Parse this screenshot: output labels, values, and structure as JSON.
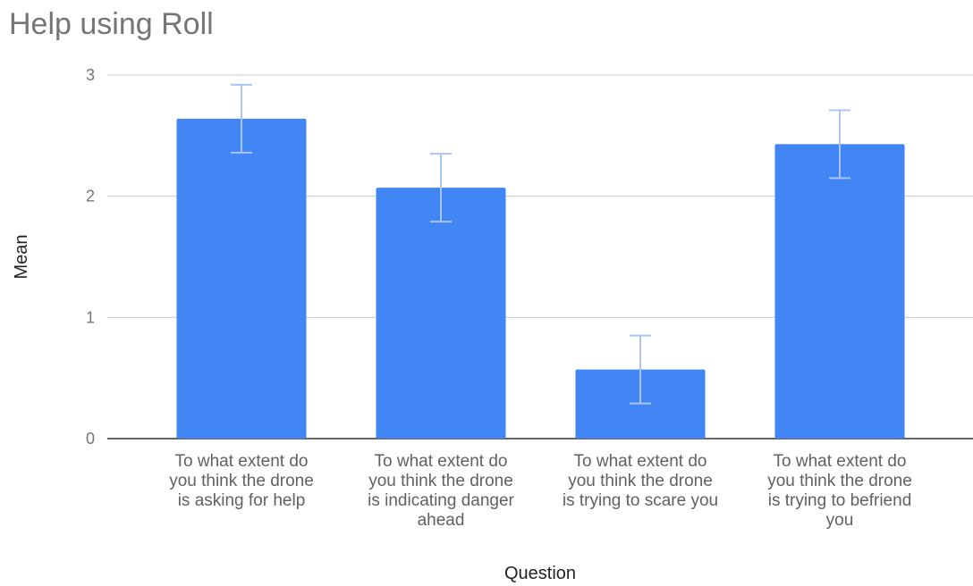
{
  "chart_data": {
    "type": "bar",
    "title": "Help using Roll",
    "xlabel": "Question",
    "ylabel": "Mean",
    "ylim": [
      0,
      3
    ],
    "yticks": [
      "0",
      "1",
      "2",
      "3"
    ],
    "grid": true,
    "categories": [
      [
        "To what extent do",
        "you think the drone",
        "is asking for help"
      ],
      [
        "To what extent do",
        "you think the drone",
        "is indicating danger",
        "ahead"
      ],
      [
        "To what extent do",
        "you think the drone",
        "is trying to scare you"
      ],
      [
        "To what extent do",
        "you think the drone",
        "is trying to befriend",
        "you"
      ]
    ],
    "values": [
      2.64,
      2.07,
      0.57,
      2.43
    ],
    "error_low": [
      2.36,
      1.79,
      0.29,
      2.15
    ],
    "error_high": [
      2.92,
      2.35,
      0.85,
      2.71
    ],
    "bar_color": "#4285f4",
    "error_color": "#a9c4f5"
  }
}
